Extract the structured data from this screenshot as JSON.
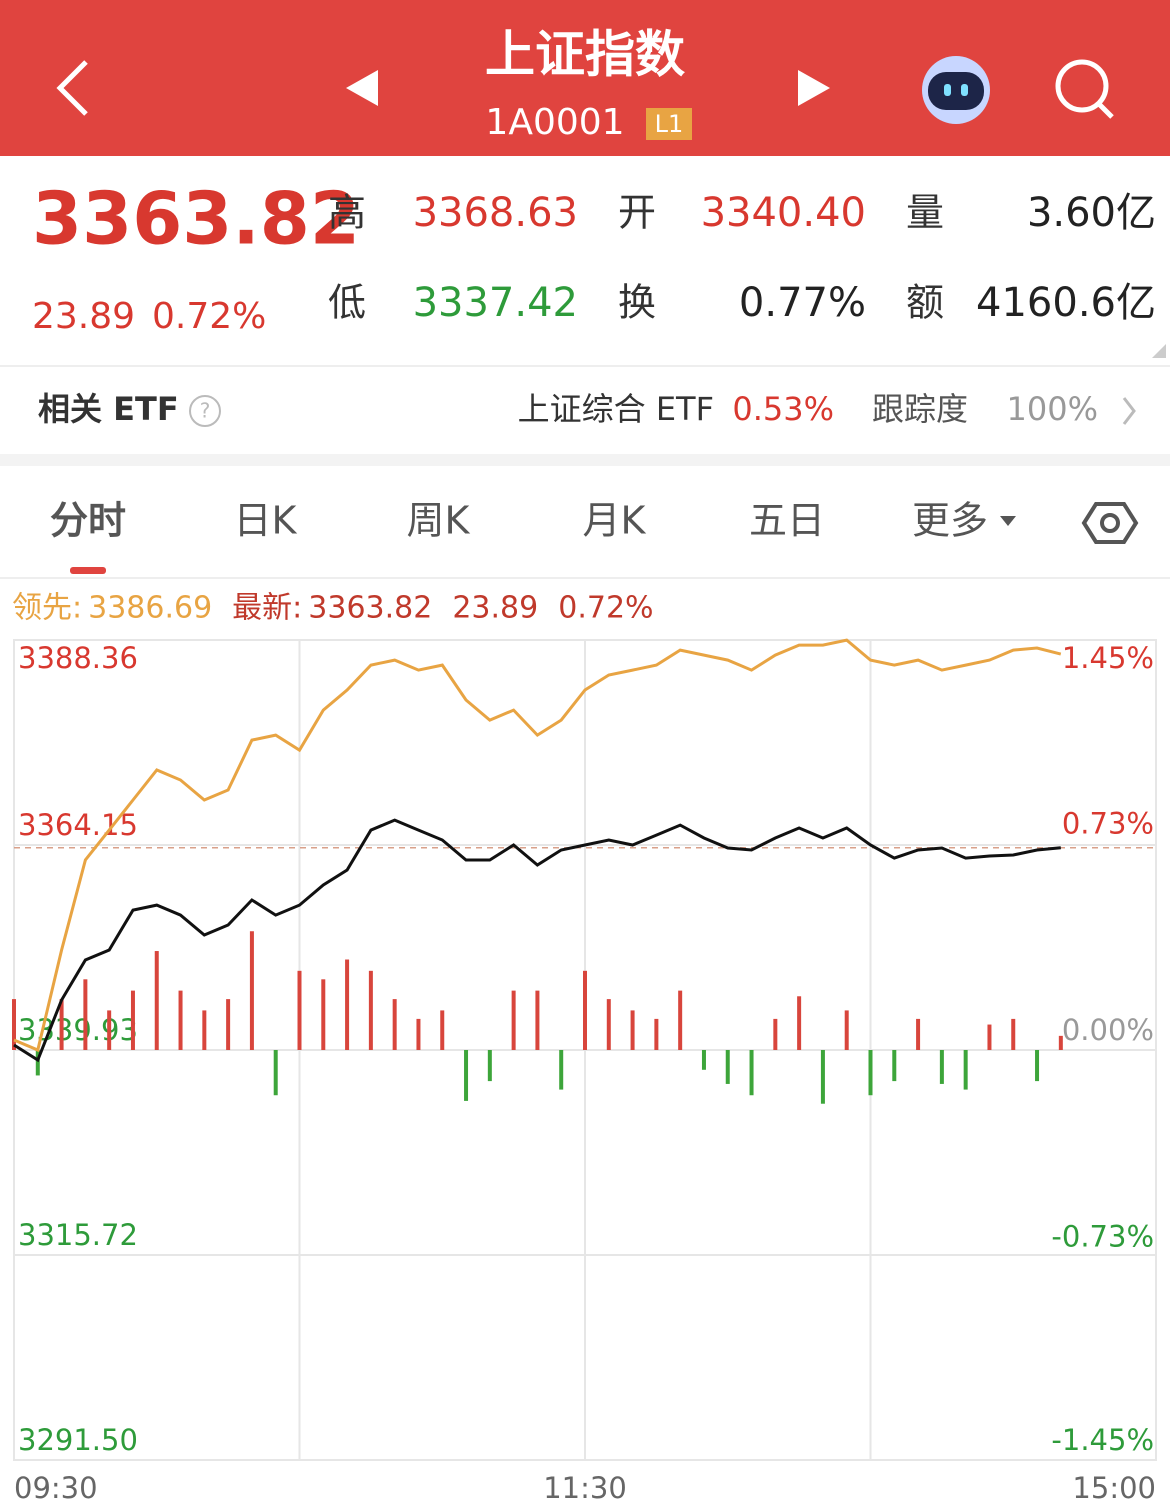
{
  "header": {
    "title": "上证指数",
    "code": "1A0001",
    "badge": "L1"
  },
  "quote": {
    "price": "3363.82",
    "change": "23.89",
    "change_pct": "0.72%",
    "stats": [
      {
        "label": "高",
        "value": "3368.63",
        "color": "#d8382f"
      },
      {
        "label": "开",
        "value": "3340.40",
        "color": "#d8382f"
      },
      {
        "label": "量",
        "value": "3.60亿",
        "color": "#222222"
      },
      {
        "label": "低",
        "value": "3337.42",
        "color": "#2e9b3a"
      },
      {
        "label": "换",
        "value": "0.77%",
        "color": "#222222"
      },
      {
        "label": "额",
        "value": "4160.6亿",
        "color": "#222222"
      }
    ]
  },
  "etf": {
    "label": "相关 ETF",
    "name": "上证综合 ETF",
    "change": "0.53%",
    "tracking_label": "跟踪度",
    "tracking": "100%"
  },
  "tabs": [
    "分时",
    "日K",
    "周K",
    "月K",
    "五日",
    "更多"
  ],
  "chart_data": {
    "type": "line",
    "lead_label": "领先:",
    "lead_value": "3386.69",
    "last_label": "最新:",
    "last_value": "3363.82",
    "last_change": "23.89",
    "last_pct": "0.72%",
    "x": [
      0,
      5,
      10,
      15,
      20,
      25,
      30,
      35,
      40,
      45,
      50,
      55,
      60,
      65,
      70,
      75,
      80,
      85,
      90,
      95,
      100,
      105,
      110,
      115,
      120,
      125,
      130,
      135,
      140,
      145,
      150,
      155,
      160,
      165,
      170,
      175,
      180,
      185,
      190,
      195,
      200,
      205,
      210,
      215,
      220
    ],
    "xlim": [
      0,
      240
    ],
    "xticks": [
      {
        "value": 0,
        "label": "09:30"
      },
      {
        "value": 120,
        "label": "11:30"
      },
      {
        "value": 240,
        "label": "15:00"
      }
    ],
    "xgrid": [
      60,
      120,
      180
    ],
    "ylim": [
      3291.5,
      3388.36
    ],
    "yticks": [
      3388.36,
      3364.15,
      3339.93,
      3315.72,
      {
        "value": 3291.5,
        "label": "3291.50"
      }
    ],
    "y2lim": [
      -1.45,
      1.45
    ],
    "y2ticks": [
      {
        "value": 1.45,
        "label": "1.45%"
      },
      {
        "value": 0.73,
        "label": "0.73%"
      },
      {
        "value": 0,
        "label": "0.00%"
      },
      {
        "value": -0.73,
        "label": "-0.73%"
      },
      {
        "value": -1.45,
        "label": "-1.45%"
      }
    ],
    "series": [
      {
        "color": "#e8a443",
        "values": [
          3341.11,
          3339.93,
          3351.74,
          3362.37,
          3365.91,
          3369.46,
          3373.0,
          3371.82,
          3369.46,
          3370.64,
          3376.54,
          3377.13,
          3375.36,
          3380.08,
          3382.45,
          3385.4,
          3385.99,
          3384.81,
          3385.4,
          3381.27,
          3378.9,
          3380.08,
          3377.13,
          3378.9,
          3382.45,
          3384.22,
          3384.81,
          3385.4,
          3387.17,
          3386.58,
          3385.99,
          3384.81,
          3386.58,
          3387.76,
          3387.76,
          3388.35,
          3385.99,
          3385.4,
          3385.99,
          3384.81,
          3385.4,
          3385.99,
          3387.17,
          3387.41,
          3386.69
        ]
      },
      {
        "color": "#111111",
        "values": [
          3340.52,
          3338.75,
          3345.84,
          3350.56,
          3351.74,
          3356.46,
          3357.05,
          3355.87,
          3353.51,
          3354.69,
          3357.65,
          3355.87,
          3357.05,
          3359.42,
          3361.19,
          3365.91,
          3367.09,
          3365.91,
          3364.73,
          3362.37,
          3362.37,
          3364.14,
          3361.78,
          3363.55,
          3364.14,
          3364.73,
          3364.14,
          3365.32,
          3366.5,
          3364.97,
          3363.79,
          3363.55,
          3364.97,
          3366.15,
          3364.97,
          3366.15,
          3364.14,
          3362.6,
          3363.55,
          3363.79,
          3362.6,
          3362.84,
          3362.96,
          3363.55,
          3363.82
        ]
      },
      {
        "type": "bar",
        "axis": "y2",
        "up_color": "#d8453c",
        "down_color": "#3da53a",
        "values": [
          0.18,
          -0.09,
          0.18,
          0.25,
          0.14,
          0.21,
          0.35,
          0.21,
          0.14,
          0.18,
          0.42,
          -0.16,
          0.28,
          0.25,
          0.32,
          0.28,
          0.18,
          0.11,
          0.14,
          -0.18,
          -0.11,
          0.21,
          0.21,
          -0.14,
          0.28,
          0.18,
          0.14,
          0.11,
          0.21,
          -0.07,
          -0.12,
          -0.16,
          0.11,
          0.19,
          -0.19,
          0.14,
          -0.16,
          -0.11,
          0.11,
          -0.12,
          -0.14,
          0.09,
          0.11,
          -0.11,
          0.05
        ]
      }
    ]
  }
}
